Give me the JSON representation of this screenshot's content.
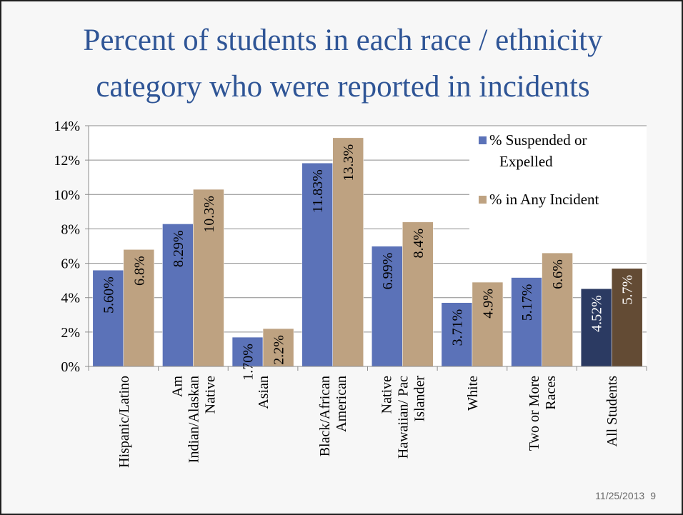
{
  "slide": {
    "title_line1": "Percent of students in each race / ethnicity",
    "title_line2": "category who were reported in incidents",
    "date": "11/25/2013",
    "page_number": "9"
  },
  "chart_data": {
    "type": "bar",
    "title": "Percent of students in each race / ethnicity category who were reported in incidents",
    "xlabel": "",
    "ylabel": "",
    "ylim": [
      0,
      14
    ],
    "y_ticks": [
      "0%",
      "2%",
      "4%",
      "6%",
      "8%",
      "10%",
      "12%",
      "14%"
    ],
    "grid": true,
    "legend_position": "top-right",
    "categories": [
      [
        "Hispanic/Latino"
      ],
      [
        "Am",
        "Indian/Alaskan",
        "Native"
      ],
      [
        "Asian"
      ],
      [
        "Black/African",
        "American"
      ],
      [
        "Native",
        "Hawaiian/ Pac",
        "Islander"
      ],
      [
        "White"
      ],
      [
        "Two or More",
        "Races"
      ],
      [
        "All Students"
      ]
    ],
    "series": [
      {
        "name": "% Suspended or Expelled",
        "legend_lines": [
          "% Suspended or",
          "Expelled"
        ],
        "color": "#5b72b8",
        "highlight_color": "#2b3a62",
        "values": [
          5.6,
          8.29,
          1.7,
          11.83,
          6.99,
          3.71,
          5.17,
          4.52
        ],
        "labels": [
          "5.60%",
          "8.29%",
          "1.70%",
          "11.83%",
          "6.99%",
          "3.71%",
          "5.17%",
          "4.52%"
        ]
      },
      {
        "name": "% in Any Incident",
        "legend_lines": [
          "% in Any Incident"
        ],
        "color": "#bea281",
        "highlight_color": "#634b34",
        "values": [
          6.8,
          10.3,
          2.2,
          13.3,
          8.4,
          4.9,
          6.6,
          5.7
        ],
        "labels": [
          "6.8%",
          "10.3%",
          "2.2%",
          "13.3%",
          "8.4%",
          "4.9%",
          "6.6%",
          "5.7%"
        ]
      }
    ],
    "highlight_category_index": 7
  }
}
